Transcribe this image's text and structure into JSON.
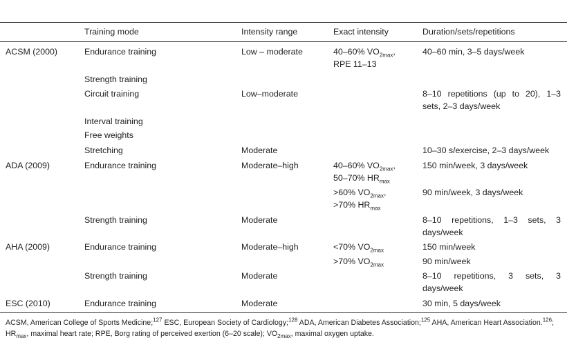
{
  "headers": {
    "org": "",
    "training_mode": "Training mode",
    "intensity_range": "Intensity range",
    "exact_intensity": "Exact intensity",
    "duration": "Duration/sets/repetitions"
  },
  "rows": [
    {
      "org": "ACSM (2000)",
      "mode": "Endurance training",
      "range": "Low – moderate",
      "duration": "40–60 min, 3–5 days/week"
    },
    {
      "org": "",
      "mode": "Strength training",
      "range": "",
      "duration": ""
    },
    {
      "org": "",
      "mode": "Circuit training",
      "range": "Low–moderate",
      "duration": "8–10 repetitions (up to 20), 1–3 sets, 2–3 days/week"
    },
    {
      "org": "",
      "mode": "Interval training",
      "range": "",
      "duration": ""
    },
    {
      "org": "",
      "mode": "Free weights",
      "range": "",
      "duration": ""
    },
    {
      "org": "",
      "mode": "Stretching",
      "range": "Moderate",
      "duration": "10–30 s/exercise, 2–3 days/week"
    },
    {
      "org": "ADA (2009)",
      "mode": "Endurance training",
      "range": "Moderate–high",
      "duration": "150 min/week, 3 days/week"
    },
    {
      "org": "",
      "mode": "",
      "range": "",
      "duration": "90 min/week, 3 days/week"
    },
    {
      "org": "",
      "mode": "Strength training",
      "range": "Moderate",
      "duration": "8–10 repetitions, 1–3 sets, 3 days/week"
    },
    {
      "org": "AHA (2009)",
      "mode": "Endurance training",
      "range": "Moderate–high",
      "duration": "150 min/week"
    },
    {
      "org": "",
      "mode": "",
      "range": "",
      "duration": "90 min/week"
    },
    {
      "org": "",
      "mode": "Strength training",
      "range": "Moderate",
      "duration": "8–10 repetitions, 3 sets, 3 days/week"
    },
    {
      "org": "ESC (2010)",
      "mode": "Endurance training",
      "range": "Moderate",
      "duration": "30 min, 5 days/week"
    }
  ],
  "intensity": {
    "acsm_1a": "40–60% VO",
    "acsm_1b": "2max",
    "acsm_1c": ",",
    "acsm_2": "RPE 11–13",
    "ada_1a": "40–60% VO",
    "ada_1b": "2max",
    "ada_1c": ",",
    "ada_2a": "50–70% HR",
    "ada_2b": "max",
    "ada_3a": ">60% VO",
    "ada_3b": "2max",
    "ada_3c": ",",
    "ada_4a": ">70% HR",
    "ada_4b": "max",
    "aha_1a": "<70% VO",
    "aha_1b": "2max",
    "aha_2a": ">70% VO",
    "aha_2b": "2max"
  },
  "footnote": {
    "p1": "ACSM, American College of Sports Medicine;",
    "r1": "127",
    "p2": " ESC, European Society of Cardiology;",
    "r2": "128",
    "p3": " ADA, American Diabetes Association;",
    "r3": "125",
    "p4": " AHA, American Heart Association.",
    "r4": "126",
    "p5": "; HR",
    "s1": "max",
    "p6": ", maximal heart rate; RPE, Borg rating of perceived exertion (6–20 scale); VO",
    "s2": "2max",
    "p7": ", maximal oxygen uptake."
  }
}
